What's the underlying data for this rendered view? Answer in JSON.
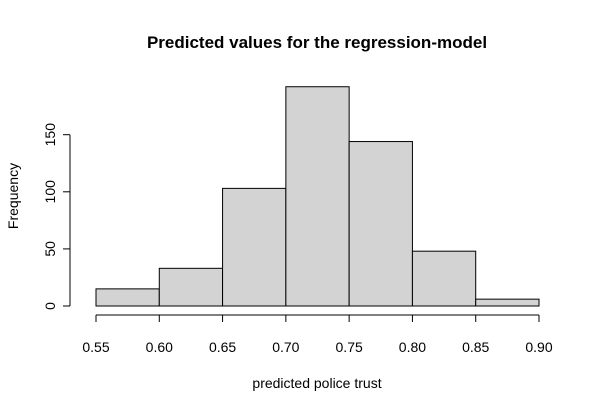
{
  "chart_data": {
    "type": "bar",
    "title": "Predicted values for the regression-model",
    "xlabel": "predicted police trust",
    "ylabel": "Frequency",
    "bins": [
      {
        "from": 0.55,
        "to": 0.6,
        "count": 15
      },
      {
        "from": 0.6,
        "to": 0.65,
        "count": 33
      },
      {
        "from": 0.65,
        "to": 0.7,
        "count": 103
      },
      {
        "from": 0.7,
        "to": 0.75,
        "count": 192
      },
      {
        "from": 0.75,
        "to": 0.8,
        "count": 144
      },
      {
        "from": 0.8,
        "to": 0.85,
        "count": 48
      },
      {
        "from": 0.85,
        "to": 0.9,
        "count": 6
      }
    ],
    "x_ticks": [
      {
        "value": 0.55,
        "label": "0.55"
      },
      {
        "value": 0.6,
        "label": "0.60"
      },
      {
        "value": 0.65,
        "label": "0.65"
      },
      {
        "value": 0.7,
        "label": "0.70"
      },
      {
        "value": 0.75,
        "label": "0.75"
      },
      {
        "value": 0.8,
        "label": "0.80"
      },
      {
        "value": 0.85,
        "label": "0.85"
      },
      {
        "value": 0.9,
        "label": "0.90"
      }
    ],
    "y_ticks": [
      {
        "value": 0,
        "label": "0"
      },
      {
        "value": 50,
        "label": "50"
      },
      {
        "value": 100,
        "label": "100"
      },
      {
        "value": 150,
        "label": "150"
      }
    ],
    "xlim": [
      0.55,
      0.9
    ],
    "ylim": [
      0,
      192
    ],
    "grid": false,
    "bar_color": "#d3d3d3"
  }
}
